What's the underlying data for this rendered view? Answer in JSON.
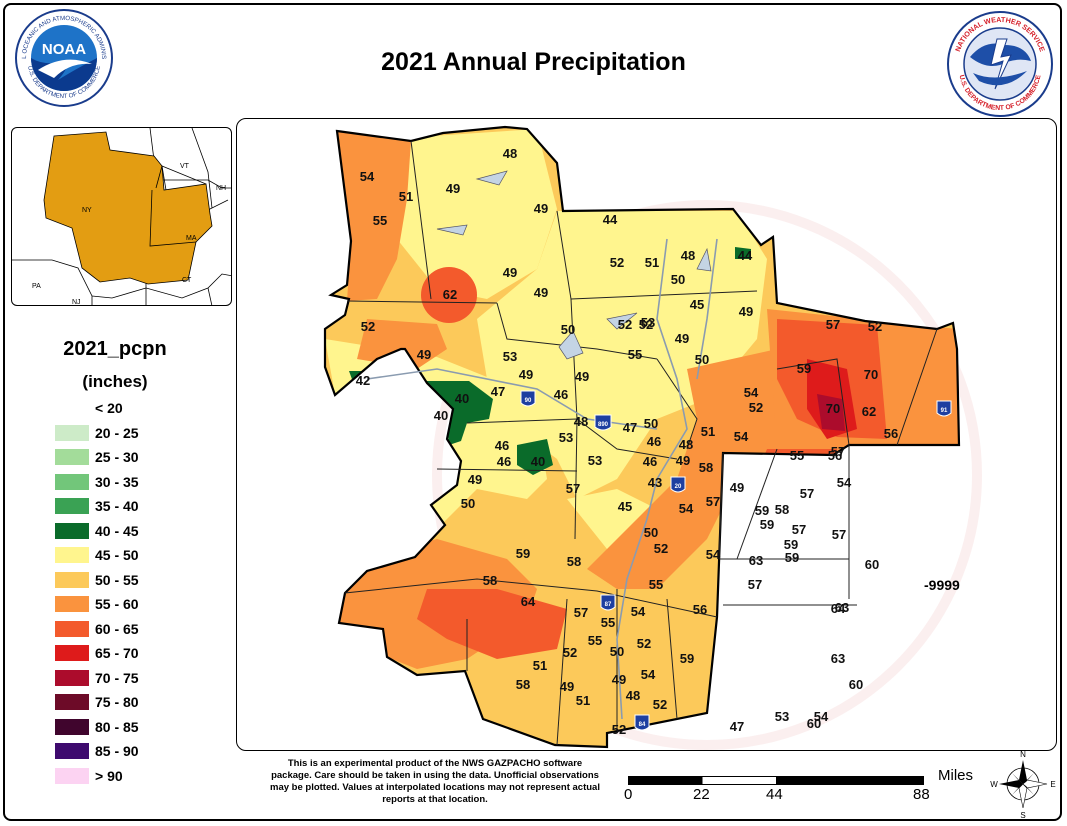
{
  "title": "2021 Annual Precipitation",
  "logos": {
    "noaa_text": "NOAA",
    "noaa_ring": "NATIONAL OCEANIC AND ATMOSPHERIC ADMINISTRATION",
    "noaa_ring_bottom": "U.S. DEPARTMENT OF COMMERCE",
    "nws_ring": "NATIONAL WEATHER SERVICE",
    "nws_ring_bottom": "U.S. DEPARTMENT OF COMMERCE"
  },
  "inset": {
    "labels": [
      "NY",
      "VT",
      "NH",
      "MA",
      "CT",
      "PA",
      "NJ"
    ]
  },
  "legend": {
    "title": "2021_pcpn",
    "units": "(inches)",
    "classes": [
      {
        "label": "< 20",
        "color": "#ffffff"
      },
      {
        "label": "20 - 25",
        "color": "#cdebc8"
      },
      {
        "label": "25 - 30",
        "color": "#a3dc9a"
      },
      {
        "label": "30 - 35",
        "color": "#72c67a"
      },
      {
        "label": "35 - 40",
        "color": "#3aa254"
      },
      {
        "label": "40 - 45",
        "color": "#0a6b2a"
      },
      {
        "label": "45 - 50",
        "color": "#fff58e"
      },
      {
        "label": "50 - 55",
        "color": "#fcc95a"
      },
      {
        "label": "55 - 60",
        "color": "#fa933e"
      },
      {
        "label": "60 - 65",
        "color": "#f35a2c"
      },
      {
        "label": "65 - 70",
        "color": "#de1b1b"
      },
      {
        "label": "70 - 75",
        "color": "#ac0c2c"
      },
      {
        "label": "75 - 80",
        "color": "#6d0b28"
      },
      {
        "label": "80 - 85",
        "color": "#40052d"
      },
      {
        "label": "85 - 90",
        "color": "#3e0a6e"
      },
      {
        "label": "> 90",
        "color": "#fcd3f2"
      }
    ]
  },
  "stations": [
    54,
    51,
    49,
    48,
    55,
    49,
    44,
    52,
    51,
    48,
    44,
    49,
    49,
    62,
    50,
    52,
    52,
    45,
    49,
    52,
    53,
    50,
    55,
    49,
    50,
    49,
    53,
    49,
    42,
    47,
    46,
    49,
    40,
    40,
    48,
    53,
    47,
    50,
    46,
    48,
    51,
    54,
    46,
    46,
    40,
    53,
    46,
    49,
    43,
    58,
    49,
    50,
    57,
    45,
    54,
    57,
    49,
    50,
    52,
    54,
    59,
    58,
    55,
    58,
    64,
    57,
    55,
    54,
    56,
    52,
    55,
    50,
    52,
    59,
    58,
    51,
    49,
    54,
    48,
    51,
    52,
    49,
    52,
    47,
    53,
    54,
    59,
    57,
    57,
    57,
    54,
    52,
    59,
    57,
    52,
    70,
    62,
    56,
    70,
    57,
    63,
    60,
    63,
    60,
    64,
    60,
    59,
    63,
    57,
    59,
    59,
    58,
    55,
    56,
    54,
    53,
    53,
    57
  ],
  "no_data_value": "-9999",
  "interstate_shields": [
    "90",
    "890",
    "20",
    "87",
    "84",
    "91"
  ],
  "disclaimer": "This is an experimental product of the NWS GAZPACHO software package. Care should be taken in using the data. Unofficial observations may be plotted. Values at interpolated locations may not represent actual reports at that location.",
  "scale": {
    "unit": "Miles",
    "ticks": [
      "0",
      "22",
      "44",
      "88"
    ]
  },
  "compass": {
    "n": "N",
    "s": "S",
    "e": "E",
    "w": "W"
  }
}
